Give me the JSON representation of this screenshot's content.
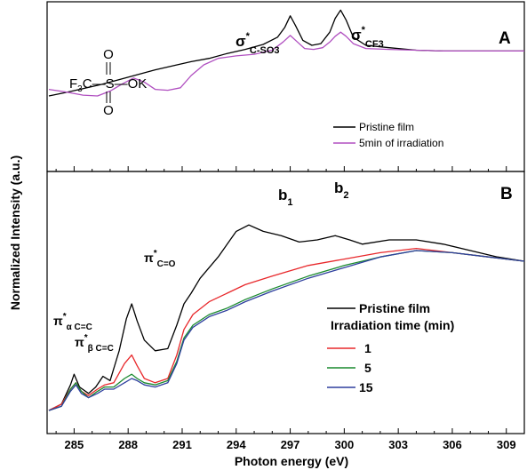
{
  "chart_data": [
    {
      "panel": "A",
      "type": "line",
      "xlabel": "Photon energy (eV)",
      "ylabel": "Normalized Intensity (a.u.)",
      "xlim": [
        283.5,
        310
      ],
      "xticks": [
        285,
        288,
        291,
        294,
        297,
        300,
        303,
        306,
        309
      ],
      "y_ticks_labeled": false,
      "legend_position": "bottom-right",
      "series": [
        {
          "name": "Pristine film",
          "color": "#000000",
          "x": [
            283.6,
            284.5,
            285.5,
            286.5,
            287.5,
            288.5,
            289.5,
            290.5,
            291.5,
            292.5,
            293.5,
            294.5,
            295.5,
            296.3,
            296.7,
            297.0,
            297.3,
            297.7,
            298.2,
            298.7,
            299.2,
            299.5,
            299.8,
            300.1,
            300.5,
            301.2,
            302.5,
            304,
            305.5,
            307,
            308.5,
            310
          ],
          "y": [
            0.0,
            0.04,
            0.09,
            0.14,
            0.2,
            0.26,
            0.32,
            0.37,
            0.42,
            0.46,
            0.52,
            0.57,
            0.63,
            0.72,
            0.84,
            0.98,
            0.86,
            0.68,
            0.62,
            0.64,
            0.78,
            0.95,
            1.05,
            0.93,
            0.72,
            0.62,
            0.59,
            0.56,
            0.55,
            0.55,
            0.55,
            0.55
          ]
        },
        {
          "name": "5min of irradiation",
          "color": "#b04fc0",
          "x": [
            283.6,
            284.5,
            285.5,
            286.3,
            287.0,
            287.7,
            288.3,
            288.9,
            289.5,
            290.2,
            290.9,
            291.5,
            292.2,
            293.0,
            294.0,
            295.0,
            296.0,
            296.6,
            297.0,
            297.4,
            297.8,
            298.3,
            298.8,
            299.2,
            299.5,
            299.8,
            300.1,
            300.5,
            301.2,
            302.5,
            304,
            305.5,
            307,
            308.5,
            310
          ],
          "y": [
            0.08,
            0.05,
            0.01,
            0.0,
            0.06,
            0.15,
            0.22,
            0.17,
            0.08,
            0.07,
            0.1,
            0.25,
            0.38,
            0.46,
            0.49,
            0.51,
            0.56,
            0.66,
            0.74,
            0.66,
            0.58,
            0.57,
            0.59,
            0.66,
            0.73,
            0.78,
            0.73,
            0.64,
            0.58,
            0.57,
            0.56,
            0.55,
            0.55,
            0.55,
            0.55
          ]
        }
      ],
      "annotations": [
        {
          "text": "σ",
          "sup": "*",
          "sub": "C-SO3"
        },
        {
          "text": "σ",
          "sup": "*",
          "sub": "CF3"
        },
        {
          "text": "A"
        }
      ],
      "structure_label": {
        "left": "F",
        "sub": "3",
        "mid": "C—S—OK",
        "atom_top": "O",
        "atom_bottom": "O"
      }
    },
    {
      "panel": "B",
      "type": "line",
      "xlabel": "Photon energy (eV)",
      "ylabel": "Normalized Intensity (a.u.)",
      "xlim": [
        283.5,
        310
      ],
      "xticks": [
        285,
        288,
        291,
        294,
        297,
        300,
        303,
        306,
        309
      ],
      "y_ticks_labeled": false,
      "legend_title": "Irradiation time (min)",
      "legend_position": "bottom-right",
      "series": [
        {
          "name": "Pristine film",
          "color": "#000000",
          "x": [
            283.6,
            284.3,
            284.8,
            285.0,
            285.3,
            285.8,
            286.2,
            286.6,
            287.0,
            287.5,
            287.9,
            288.2,
            288.5,
            288.9,
            289.5,
            290.2,
            290.7,
            291.1,
            291.5,
            292.0,
            293.0,
            294.0,
            294.7,
            295.5,
            296.5,
            297.5,
            298.5,
            299.5,
            300.3,
            301.0,
            302.5,
            304.0,
            305.5,
            307.0,
            308.5,
            310.0
          ],
          "y": [
            0.0,
            0.03,
            0.12,
            0.17,
            0.11,
            0.08,
            0.11,
            0.16,
            0.14,
            0.28,
            0.43,
            0.5,
            0.42,
            0.33,
            0.28,
            0.29,
            0.4,
            0.5,
            0.55,
            0.62,
            0.72,
            0.84,
            0.87,
            0.84,
            0.82,
            0.79,
            0.8,
            0.82,
            0.8,
            0.78,
            0.8,
            0.8,
            0.78,
            0.75,
            0.72,
            0.7
          ]
        },
        {
          "name": "1",
          "color": "#e8282b",
          "x": [
            283.6,
            284.3,
            284.8,
            285.1,
            285.4,
            285.8,
            286.3,
            286.7,
            287.2,
            287.8,
            288.2,
            288.5,
            288.9,
            289.5,
            290.2,
            290.7,
            291.1,
            291.6,
            292.5,
            293.5,
            294.5,
            296,
            298,
            300,
            302,
            304,
            306,
            308,
            310
          ],
          "y": [
            0.0,
            0.03,
            0.1,
            0.13,
            0.09,
            0.07,
            0.1,
            0.12,
            0.13,
            0.22,
            0.26,
            0.21,
            0.15,
            0.13,
            0.15,
            0.26,
            0.38,
            0.45,
            0.51,
            0.55,
            0.59,
            0.63,
            0.68,
            0.71,
            0.74,
            0.76,
            0.74,
            0.72,
            0.7
          ]
        },
        {
          "name": "5",
          "color": "#1a8a2e",
          "x": [
            283.6,
            284.3,
            284.8,
            285.1,
            285.4,
            285.8,
            286.3,
            286.7,
            287.2,
            287.8,
            288.2,
            288.5,
            288.9,
            289.5,
            290.2,
            290.7,
            291.1,
            291.6,
            292.5,
            293.5,
            294.5,
            296,
            298,
            300,
            302,
            304,
            306,
            308,
            310
          ],
          "y": [
            0.0,
            0.02,
            0.1,
            0.13,
            0.09,
            0.06,
            0.09,
            0.11,
            0.11,
            0.15,
            0.17,
            0.15,
            0.13,
            0.12,
            0.14,
            0.23,
            0.34,
            0.4,
            0.45,
            0.48,
            0.52,
            0.57,
            0.63,
            0.68,
            0.72,
            0.75,
            0.74,
            0.72,
            0.7
          ]
        },
        {
          "name": "15",
          "color": "#2e3f9e",
          "x": [
            283.6,
            284.3,
            284.8,
            285.1,
            285.4,
            285.8,
            286.3,
            286.7,
            287.2,
            287.8,
            288.2,
            288.5,
            288.9,
            289.5,
            290.2,
            290.7,
            291.1,
            291.6,
            292.5,
            293.5,
            294.5,
            296,
            298,
            300,
            302,
            304,
            306,
            308,
            310
          ],
          "y": [
            0.0,
            0.02,
            0.09,
            0.12,
            0.08,
            0.06,
            0.08,
            0.1,
            0.1,
            0.13,
            0.15,
            0.14,
            0.12,
            0.11,
            0.13,
            0.22,
            0.33,
            0.39,
            0.44,
            0.47,
            0.51,
            0.56,
            0.62,
            0.67,
            0.72,
            0.75,
            0.74,
            0.72,
            0.7
          ]
        }
      ],
      "annotations": [
        {
          "text": "b",
          "sub": "1"
        },
        {
          "text": "b",
          "sub": "2"
        },
        {
          "text": "π",
          "sup": "*",
          "sub": "C=O"
        },
        {
          "text": "π",
          "sup": "*",
          "sub": "α C=C"
        },
        {
          "text": "π",
          "sup": "*",
          "sub": "β C=C"
        },
        {
          "text": "B"
        }
      ]
    }
  ]
}
